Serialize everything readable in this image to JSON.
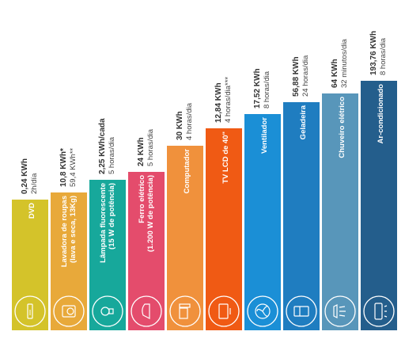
{
  "chart_data": {
    "type": "bar",
    "title": "",
    "xlabel": "",
    "ylabel": "",
    "categories": [
      {
        "label_lines": [
          "DVD"
        ],
        "value_text": "0,24 KWh",
        "usage_text": "2h/día",
        "value": 0.24,
        "color": "#d4c32a",
        "icon": "dvd-player-icon"
      },
      {
        "label_lines": [
          "Lavadora de roupas",
          "(lava e seca, 13Kg)"
        ],
        "value_text": "10,8 KWh*",
        "usage_text": "59,4 KWh**",
        "value": 10.8,
        "color": "#e8a93a",
        "icon": "washing-machine-icon"
      },
      {
        "label_lines": [
          "Lâmpada fluorescente",
          "(15 W de potência)"
        ],
        "value_text": "2,25 KWh/cada",
        "usage_text": "5 horas/dia",
        "value": 2.25,
        "color": "#17a89b",
        "icon": "light-bulb-icon"
      },
      {
        "label_lines": [
          "Ferro elétrico",
          "(1.200 W de potência)"
        ],
        "value_text": "24 KWh",
        "usage_text": "5 horas/dia",
        "value": 24,
        "color": "#e44c6c",
        "icon": "iron-icon"
      },
      {
        "label_lines": [
          "Computador"
        ],
        "value_text": "30 KWh",
        "usage_text": "4 horas/dia",
        "value": 30,
        "color": "#f0913c",
        "icon": "computer-icon"
      },
      {
        "label_lines": [
          "TV LCD de 40\""
        ],
        "value_text": "12,84 KWh",
        "usage_text": "4 horas/dia***",
        "value": 12.84,
        "color": "#f05a14",
        "icon": "tv-icon"
      },
      {
        "label_lines": [
          "Ventilador"
        ],
        "value_text": "17,52 KWh",
        "usage_text": "8 horas/dia",
        "value": 17.52,
        "color": "#1b8fd6",
        "icon": "fan-icon"
      },
      {
        "label_lines": [
          "Geladeira"
        ],
        "value_text": "56,88 KWh",
        "usage_text": "24 horas/dia",
        "value": 56.88,
        "color": "#1f7dc0",
        "icon": "refrigerator-icon"
      },
      {
        "label_lines": [
          "Chuveiro elétrico"
        ],
        "value_text": "64 KWh",
        "usage_text": "32 minutos/dia",
        "value": 64,
        "color": "#5896ba",
        "icon": "shower-icon"
      },
      {
        "label_lines": [
          "Ar-condicionado"
        ],
        "value_text": "193,76 KWh",
        "usage_text": "8 horas/dia",
        "value": 193.76,
        "color": "#245e8c",
        "icon": "air-conditioner-icon"
      }
    ]
  }
}
